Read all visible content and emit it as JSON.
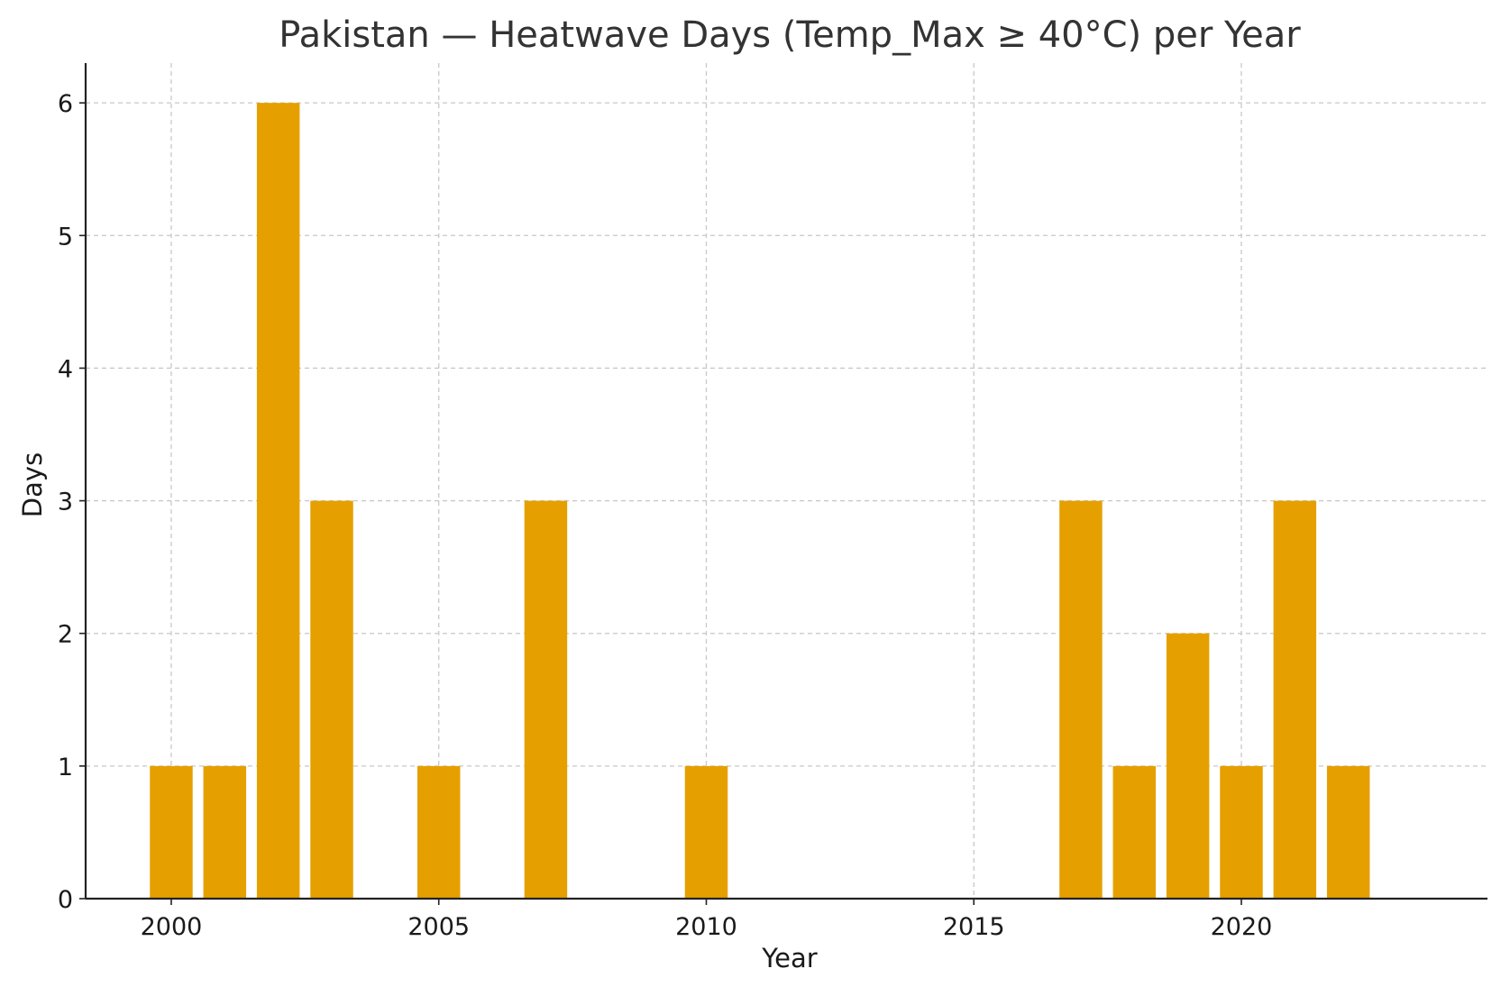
{
  "chart_data": {
    "type": "bar",
    "title": "Pakistan — Heatwave Days (Temp_Max ≥ 40°C) per Year",
    "xlabel": "Year",
    "ylabel": "Days",
    "x": [
      2000,
      2001,
      2002,
      2003,
      2005,
      2007,
      2010,
      2017,
      2018,
      2019,
      2020,
      2021,
      2022
    ],
    "values": [
      1,
      1,
      6,
      3,
      1,
      3,
      1,
      3,
      1,
      2,
      1,
      3,
      1
    ],
    "xlim": [
      1998.4,
      2024.6
    ],
    "ylim": [
      0,
      6.3
    ],
    "xticks": [
      2000,
      2005,
      2010,
      2015,
      2020
    ],
    "yticks": [
      0,
      1,
      2,
      3,
      4,
      5,
      6
    ],
    "bar_color": "#E5A000",
    "grid": true,
    "legend": "none"
  }
}
